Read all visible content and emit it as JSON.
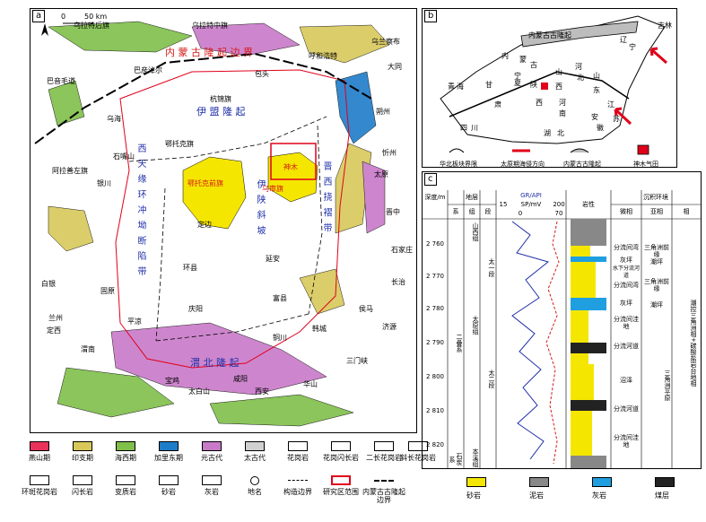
{
  "panel_a": {
    "label": "a",
    "scale": {
      "zero": "0",
      "value": "50 km"
    },
    "places": [
      "乌拉特后旗",
      "乌拉特中旗",
      "乌兰察布",
      "巴彦淖尔",
      "呼和浩特",
      "包头",
      "大同",
      "巴音毛道",
      "乌海",
      "杭锦旗",
      "朔州",
      "鄂托克旗",
      "石嘴山",
      "忻州",
      "阿拉善左旗",
      "银川",
      "太原",
      "定边",
      "晋中",
      "延安",
      "石家庄",
      "白银",
      "固原",
      "富县",
      "平凉",
      "庆阳",
      "环县",
      "侯马",
      "定西",
      "渭南",
      "韩城",
      "铜川",
      "三门峡",
      "宝鸡",
      "咸阳",
      "西安",
      "华山",
      "太白山",
      "济源",
      "兰州",
      "长治"
    ],
    "regions": {
      "north": "伊 盟 隆 起",
      "west": "西 天 缘 环 冲 坳 断 陷 带",
      "center": "伊 陕 斜 坡",
      "east": "晋 西 挠 褶 带",
      "south": "渭 北 隆 起",
      "uplift": "内 蒙 古 隆 起 边 界",
      "shenmu": "神木",
      "area2": "鄂托克前旗",
      "area3": "乌审旗",
      "area4": "西安"
    }
  },
  "panel_b": {
    "label": "b",
    "title": "内蒙古古隆起",
    "provinces": [
      "辽",
      "宁",
      "吉林",
      "内",
      "蒙",
      "古",
      "青",
      "海",
      "甘",
      "肃",
      "宁",
      "夏",
      "陕",
      "西",
      "山",
      "西",
      "河",
      "北",
      "山",
      "东",
      "河",
      "南",
      "四",
      "川",
      "湖",
      "北",
      "江",
      "苏",
      "安",
      "徽"
    ],
    "legend": [
      "华北板块界限",
      "太原期海侵方向",
      "内蒙古古隆起",
      "神木气田"
    ]
  },
  "panel_c": {
    "label": "c",
    "headers": {
      "depth": "深度/m",
      "strat": "地层",
      "system": "系",
      "group": "组",
      "section": "段",
      "log": "GR/API",
      "sp": "SP/mV",
      "lith": "岩性",
      "env": "沉积环境",
      "micro": "微相",
      "sub": "亚相",
      "facies": "相"
    },
    "scale_gr": [
      "15",
      "200"
    ],
    "scale_sp": [
      "0",
      "70"
    ],
    "depths": [
      "2 760",
      "2 770",
      "2 780",
      "2 790",
      "2 800",
      "2 810",
      "2 820"
    ],
    "system": "二叠系",
    "system_low": "石炭系",
    "groups": [
      "山西组",
      "太原组",
      "本溪组"
    ],
    "sections": [
      "太一段",
      "太二段"
    ],
    "micro": [
      "分流间湾",
      "灰坪",
      "水下分流河道",
      "分流间湾",
      "灰坪",
      "分流间洼地",
      "分流河道",
      "沼泽",
      "分流河道",
      "分流间洼地"
    ],
    "sub": [
      "三角洲前缘",
      "潮坪",
      "三角洲前缘",
      "潮坪",
      "三角洲平原"
    ],
    "facies": "潮控三角洲相+碳酸盐岩台地相",
    "lith_legend": [
      "砂岩",
      "泥岩",
      "灰岩",
      "煤层"
    ]
  },
  "legend": {
    "items": [
      "燕山期",
      "印支期",
      "海西期",
      "加里东期",
      "元古代",
      "太古代",
      "花岗岩",
      "花岗闪长岩",
      "二长花岗岩",
      "斜长花岗岩",
      "环斑花岗岩",
      "闪长岩",
      "变质岩",
      "砂岩",
      "灰岩",
      "地名",
      "构造边界",
      "研究区范围",
      "内蒙古古隆起边界"
    ],
    "colors": {
      "yanshan": "#e8325a",
      "yinzhi": "#d8c85a",
      "haixi": "#7fbf4a",
      "jialidong": "#1f7cc8",
      "yuangu": "#c87ac8",
      "taigu": "#d0d0d0",
      "yellow": "#f5e600",
      "gray": "#888888",
      "blue": "#1f9fe0",
      "black": "#222222"
    }
  }
}
